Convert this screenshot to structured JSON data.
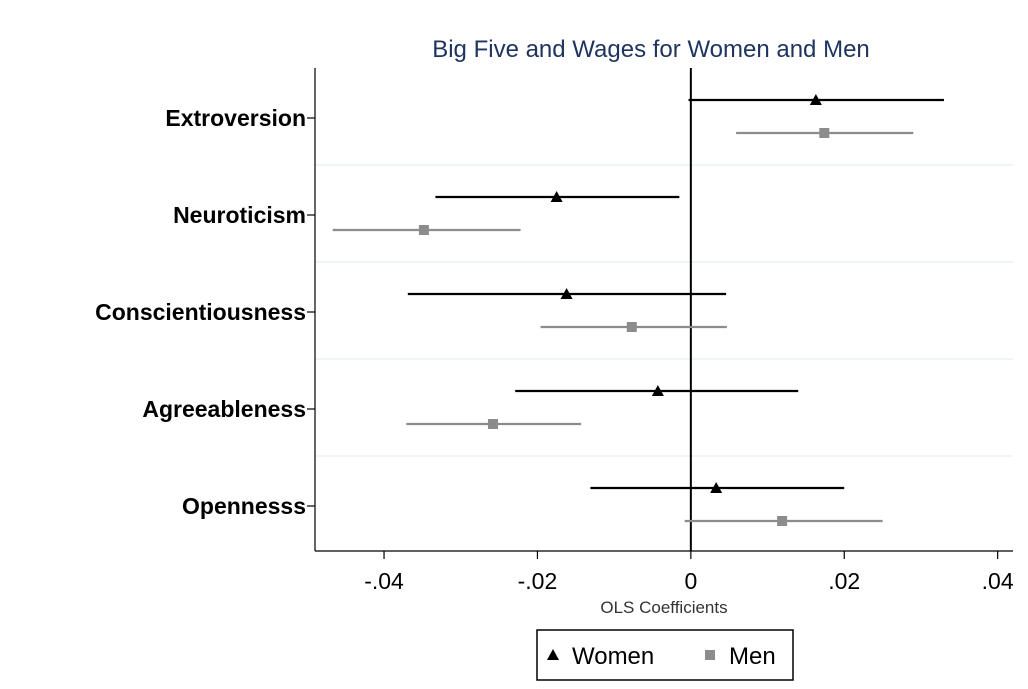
{
  "chart_data": {
    "type": "scatter",
    "subtype": "coefficient plot with confidence intervals",
    "title": "Big Five and Wages for Women and Men",
    "xlabel": "OLS Coefficients",
    "ylabel": "",
    "xlim": [
      -0.049,
      0.042
    ],
    "xticks": [
      -0.04,
      -0.02,
      0,
      0.02,
      0.04
    ],
    "xtick_labels": [
      "-.04",
      "-.02",
      "0",
      ".02",
      ".04"
    ],
    "categories": [
      "Extroversion",
      "Neuroticism",
      "Conscientiousness",
      "Agreeableness",
      "Opennesss"
    ],
    "reference_line_x": 0,
    "series": [
      {
        "name": "Women",
        "marker": "triangle",
        "color": "#000000",
        "estimates": [
          0.0163,
          -0.0175,
          -0.0162,
          -0.0043,
          0.0033
        ],
        "ci_low": [
          -0.0003,
          -0.0333,
          -0.0369,
          -0.0229,
          -0.0131
        ],
        "ci_high": [
          0.033,
          -0.0015,
          0.0046,
          0.014,
          0.02
        ]
      },
      {
        "name": "Men",
        "marker": "square",
        "color": "#8c8c8c",
        "estimates": [
          0.0174,
          -0.0348,
          -0.0077,
          -0.0258,
          0.0119
        ],
        "ci_low": [
          0.0059,
          -0.0467,
          -0.0196,
          -0.0371,
          -0.0008
        ],
        "ci_high": [
          0.029,
          -0.0222,
          0.0047,
          -0.0143,
          0.025
        ]
      }
    ],
    "legend": {
      "position": "bottom-center",
      "entries": [
        "Women",
        "Men"
      ]
    },
    "grid": true
  }
}
